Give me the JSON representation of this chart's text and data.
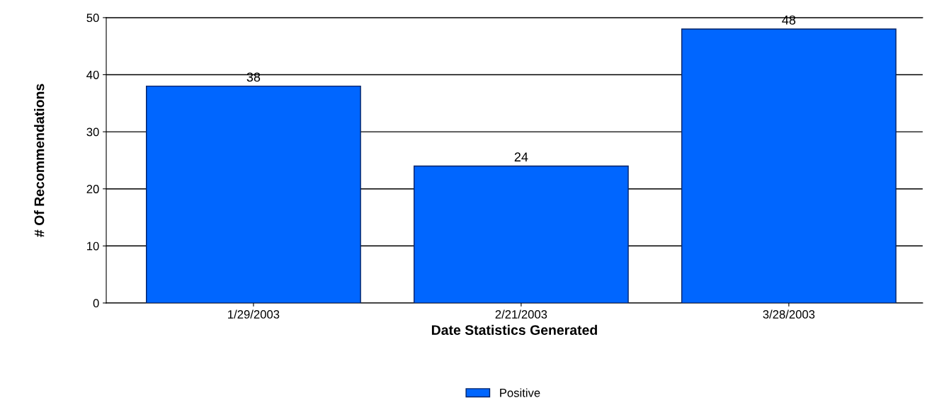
{
  "chart_data": {
    "type": "bar",
    "xlabel": "Date Statistics Generated",
    "ylabel": "# Of Recommendations",
    "categories": [
      "1/29/2003",
      "2/21/2003",
      "3/28/2003"
    ],
    "series": [
      {
        "name": "Positive",
        "color": "#0066ff",
        "values": [
          38,
          24,
          48
        ]
      }
    ],
    "ylim": [
      0,
      50
    ],
    "yticks": [
      0,
      10,
      20,
      30,
      40,
      50
    ],
    "grid": "y",
    "legend": "bottom",
    "data_labels": true
  }
}
